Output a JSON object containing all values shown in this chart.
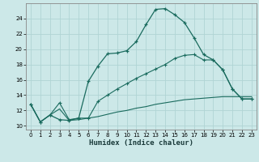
{
  "title": "",
  "xlabel": "Humidex (Indice chaleur)",
  "ylabel": "",
  "bg_color": "#cce8e8",
  "grid_color": "#b0d4d4",
  "line_color": "#1a6b5e",
  "xlim": [
    -0.5,
    23.5
  ],
  "ylim": [
    9.5,
    26.0
  ],
  "xticks": [
    0,
    1,
    2,
    3,
    4,
    5,
    6,
    7,
    8,
    9,
    10,
    11,
    12,
    13,
    14,
    15,
    16,
    17,
    18,
    19,
    20,
    21,
    22,
    23
  ],
  "yticks": [
    10,
    12,
    14,
    16,
    18,
    20,
    22,
    24
  ],
  "line1_x": [
    0,
    1,
    2,
    3,
    4,
    5,
    6,
    7,
    8,
    9,
    10,
    11,
    12,
    13,
    14,
    15,
    16,
    17,
    18,
    19,
    20,
    21,
    22,
    23
  ],
  "line1_y": [
    12.8,
    10.5,
    11.4,
    10.8,
    10.7,
    11.0,
    15.8,
    17.8,
    19.4,
    19.5,
    19.8,
    21.0,
    23.2,
    25.2,
    25.3,
    24.5,
    23.5,
    21.5,
    19.3,
    18.6,
    17.3,
    14.8,
    13.5,
    13.5
  ],
  "line2_x": [
    0,
    1,
    2,
    3,
    4,
    5,
    6,
    7,
    8,
    9,
    10,
    11,
    12,
    13,
    14,
    15,
    16,
    17,
    18,
    19,
    20,
    21,
    22,
    23
  ],
  "line2_y": [
    12.8,
    10.5,
    11.4,
    13.0,
    10.8,
    11.0,
    11.0,
    13.2,
    14.0,
    14.8,
    15.5,
    16.2,
    16.8,
    17.4,
    18.0,
    18.8,
    19.2,
    19.3,
    18.6,
    18.6,
    17.3,
    14.8,
    13.5,
    13.5
  ],
  "line3_x": [
    0,
    1,
    2,
    3,
    4,
    5,
    6,
    7,
    8,
    9,
    10,
    11,
    12,
    13,
    14,
    15,
    16,
    17,
    18,
    19,
    20,
    21,
    22,
    23
  ],
  "line3_y": [
    12.8,
    10.5,
    11.4,
    12.2,
    10.7,
    10.8,
    11.0,
    11.2,
    11.5,
    11.8,
    12.0,
    12.3,
    12.5,
    12.8,
    13.0,
    13.2,
    13.4,
    13.5,
    13.6,
    13.7,
    13.8,
    13.8,
    13.8,
    13.8
  ]
}
